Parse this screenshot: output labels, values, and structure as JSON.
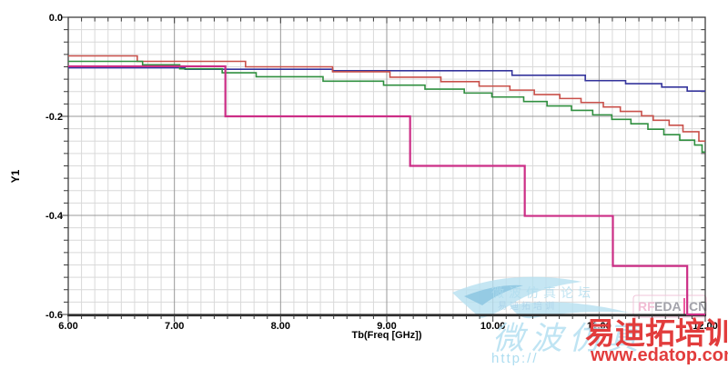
{
  "page": {
    "background": "#ffffff"
  },
  "chart_data": {
    "type": "line",
    "subtype": "step-staircase",
    "title": "",
    "xlabel": "Tb(Freq [GHz])",
    "ylabel": "Y1",
    "xlim": [
      6,
      12
    ],
    "ylim": [
      -0.6,
      0
    ],
    "grid": "major+minor",
    "legend": "none",
    "minor_divisions_per_major_x": 8,
    "minor_divisions_per_major_y": 8,
    "xticks": {
      "values": [
        6,
        7,
        8,
        9,
        10,
        11,
        12
      ],
      "labels": [
        "6.00",
        "7.00",
        "8.00",
        "9.00",
        "10.00",
        "11.00",
        "12.00"
      ]
    },
    "yticks": {
      "values": [
        0,
        -0.2,
        -0.4,
        -0.6
      ],
      "labels": [
        "0.0",
        "-0.2",
        "-0.4",
        "-0.6"
      ]
    },
    "series": [
      {
        "name": "blue-trace",
        "color": "#34349c",
        "width": 1.6,
        "end_x": 12.0,
        "steps": [
          [
            6.0,
            -0.102
          ],
          [
            7.1,
            -0.105
          ],
          [
            8.49,
            -0.108
          ],
          [
            10.18,
            -0.117
          ],
          [
            10.87,
            -0.128
          ],
          [
            11.25,
            -0.134
          ],
          [
            11.59,
            -0.141
          ],
          [
            11.83,
            -0.149
          ]
        ]
      },
      {
        "name": "red-trace",
        "color": "#c9504a",
        "width": 1.6,
        "end_x": 12.0,
        "steps": [
          [
            6.0,
            -0.078
          ],
          [
            6.65,
            -0.089
          ],
          [
            7.67,
            -0.1
          ],
          [
            8.49,
            -0.11
          ],
          [
            9.03,
            -0.121
          ],
          [
            9.51,
            -0.13
          ],
          [
            9.87,
            -0.139
          ],
          [
            10.16,
            -0.147
          ],
          [
            10.39,
            -0.156
          ],
          [
            10.63,
            -0.164
          ],
          [
            10.83,
            -0.172
          ],
          [
            11.04,
            -0.181
          ],
          [
            11.2,
            -0.19
          ],
          [
            11.4,
            -0.199
          ],
          [
            11.51,
            -0.208
          ],
          [
            11.66,
            -0.218
          ],
          [
            11.79,
            -0.231
          ],
          [
            11.94,
            -0.25
          ]
        ]
      },
      {
        "name": "green-trace",
        "color": "#2f8f3f",
        "width": 1.6,
        "end_x": 12.0,
        "steps": [
          [
            6.0,
            -0.089
          ],
          [
            6.7,
            -0.096
          ],
          [
            7.05,
            -0.104
          ],
          [
            7.45,
            -0.112
          ],
          [
            7.77,
            -0.12
          ],
          [
            8.4,
            -0.129
          ],
          [
            8.97,
            -0.137
          ],
          [
            9.36,
            -0.145
          ],
          [
            9.73,
            -0.153
          ],
          [
            9.99,
            -0.161
          ],
          [
            10.29,
            -0.17
          ],
          [
            10.51,
            -0.179
          ],
          [
            10.74,
            -0.188
          ],
          [
            10.94,
            -0.197
          ],
          [
            11.12,
            -0.206
          ],
          [
            11.3,
            -0.215
          ],
          [
            11.46,
            -0.226
          ],
          [
            11.61,
            -0.237
          ],
          [
            11.76,
            -0.248
          ],
          [
            11.9,
            -0.258
          ],
          [
            11.97,
            -0.272
          ]
        ]
      },
      {
        "name": "magenta-trace",
        "color": "#cc2e86",
        "width": 2.2,
        "end_x": 12.0,
        "steps": [
          [
            6.0,
            -0.099
          ],
          [
            7.48,
            -0.2
          ],
          [
            9.22,
            -0.3
          ],
          [
            10.3,
            -0.401
          ],
          [
            11.13,
            -0.502
          ],
          [
            11.83,
            -0.6
          ]
        ]
      }
    ]
  },
  "style": {
    "frame_color": "#3f3f3f",
    "axis_color": "#2e2e2e",
    "major_grid_color": "#999999",
    "minor_grid_color": "#d9d9d9",
    "tick_color": "#3a3a3a",
    "label_color": "#000000"
  },
  "watermarks": {
    "inplot_text_line1": "微波仿真论坛",
    "inplot_text_line2": "易迪拓培训",
    "script_text": "微波仿真",
    "http_text": "http://",
    "brand_text": "易迪拓培训",
    "url_text": "www.edatop.com",
    "logo": {
      "rf": "RF",
      "eda": "EDA",
      "cn": "CN"
    },
    "colors": {
      "light_blue": "#b9e2f2",
      "pale_blue": "#aedcee",
      "red": "#e23c3c",
      "logo_gray": "#a2a2aa",
      "logo_pink": "#ee5aa0",
      "logo_border_pink": "#f0c4d8",
      "bird_blue": "#b6e0f0",
      "bird_accent": "#8fc8e2"
    }
  }
}
